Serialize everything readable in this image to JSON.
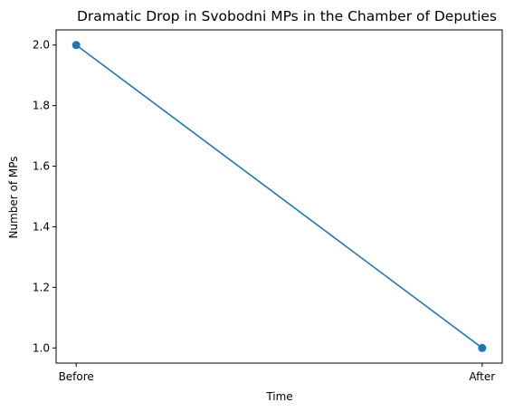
{
  "chart_data": {
    "type": "line",
    "title": "Dramatic Drop in Svobodni MPs in the Chamber of Deputies",
    "xlabel": "Time",
    "ylabel": "Number of MPs",
    "categories": [
      "Before",
      "After"
    ],
    "series": [
      {
        "values": [
          2,
          1
        ],
        "color": "#1f77b4",
        "marker": "circle"
      }
    ],
    "yticks": [
      1.0,
      1.2,
      1.4,
      1.6,
      1.8,
      2.0
    ],
    "ytick_labels": [
      "1.0",
      "1.2",
      "1.4",
      "1.6",
      "1.8",
      "2.0"
    ],
    "ylim": [
      0.95,
      2.05
    ],
    "grid": false,
    "legend": "none"
  }
}
